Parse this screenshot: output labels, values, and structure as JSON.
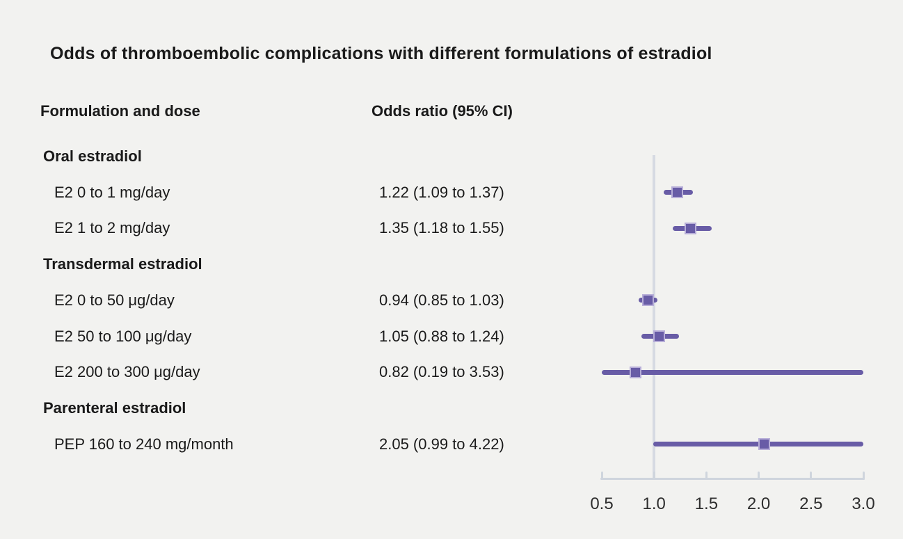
{
  "title": "Odds of thromboembolic complications with different formulations of estradiol",
  "columns": {
    "left": "Formulation and dose",
    "right": "Odds ratio (95% CI)"
  },
  "colors": {
    "background": "#f2f2f0",
    "text": "#1a1a1a",
    "purple": "#685ca6",
    "marker_border": "#b7aed8",
    "ref_line": "#d6dae2",
    "axis": "#cfd5dd",
    "tick_text": "#2e2e2e"
  },
  "chart_data": {
    "type": "forest",
    "title": "Odds of thromboembolic complications with different formulations of estradiol",
    "xlabel": "Odds ratio",
    "xlim": [
      0.5,
      3.0
    ],
    "ticks": [
      0.5,
      1.0,
      1.5,
      2.0,
      2.5,
      3.0
    ],
    "tick_labels": [
      "0.5",
      "1.0",
      "1.5",
      "2.0",
      "2.5",
      "3.0"
    ],
    "reference_line": 1.0,
    "grid": false,
    "rows": [
      {
        "kind": "group",
        "label": "Oral estradiol"
      },
      {
        "kind": "item",
        "label": "E2 0 to 1 mg/day",
        "value_text": "1.22 (1.09 to 1.37)",
        "or": 1.22,
        "lo": 1.09,
        "hi": 1.37
      },
      {
        "kind": "item",
        "label": "E2 1 to 2 mg/day",
        "value_text": "1.35 (1.18 to 1.55)",
        "or": 1.35,
        "lo": 1.18,
        "hi": 1.55
      },
      {
        "kind": "group",
        "label": "Transdermal estradiol"
      },
      {
        "kind": "item",
        "label": "E2 0 to 50 μg/day",
        "value_text": "0.94 (0.85 to 1.03)",
        "or": 0.94,
        "lo": 0.85,
        "hi": 1.03
      },
      {
        "kind": "item",
        "label": "E2 50 to 100 μg/day",
        "value_text": "1.05 (0.88 to 1.24)",
        "or": 1.05,
        "lo": 0.88,
        "hi": 1.24
      },
      {
        "kind": "item",
        "label": "E2 200 to 300 μg/day",
        "value_text": "0.82 (0.19 to 3.53)",
        "or": 0.82,
        "lo": 0.19,
        "hi": 3.53
      },
      {
        "kind": "group",
        "label": "Parenteral estradiol"
      },
      {
        "kind": "item",
        "label": "PEP 160 to 240 mg/month",
        "value_text": "2.05 (0.99 to 4.22)",
        "or": 2.05,
        "lo": 0.99,
        "hi": 4.22
      }
    ]
  }
}
